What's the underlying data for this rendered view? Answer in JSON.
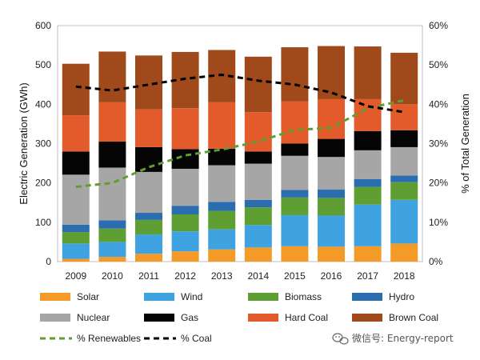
{
  "chart_data": {
    "type": "bar",
    "stacked": true,
    "categories": [
      "2009",
      "2010",
      "2011",
      "2012",
      "2013",
      "2014",
      "2015",
      "2016",
      "2017",
      "2018"
    ],
    "series": [
      {
        "name": "Solar",
        "color": "#F39A27",
        "values": [
          7,
          12,
          20,
          26,
          31,
          36,
          39,
          38,
          39,
          46
        ]
      },
      {
        "name": "Wind",
        "color": "#3EA3E0",
        "values": [
          39,
          38,
          49,
          51,
          51,
          57,
          79,
          79,
          106,
          111
        ]
      },
      {
        "name": "Biomass",
        "color": "#5E9E33",
        "values": [
          29,
          34,
          37,
          43,
          47,
          45,
          45,
          45,
          45,
          45
        ]
      },
      {
        "name": "Hydro",
        "color": "#2B6EB0",
        "values": [
          19,
          21,
          18,
          22,
          23,
          19,
          19,
          21,
          20,
          17
        ]
      },
      {
        "name": "Nuclear",
        "color": "#A6A6A6",
        "values": [
          127,
          134,
          104,
          94,
          93,
          92,
          87,
          83,
          73,
          72
        ]
      },
      {
        "name": "Gas",
        "color": "#050505",
        "values": [
          59,
          66,
          63,
          50,
          42,
          31,
          31,
          46,
          49,
          43
        ]
      },
      {
        "name": "Hard Coal",
        "color": "#E35B2A",
        "values": [
          92,
          100,
          96,
          104,
          118,
          100,
          107,
          101,
          81,
          66
        ]
      },
      {
        "name": "Brown Coal",
        "color": "#A04A1C",
        "values": [
          131,
          129,
          137,
          143,
          133,
          141,
          138,
          135,
          134,
          131
        ]
      }
    ],
    "lines": [
      {
        "name": "% Renewables",
        "color": "#5E9E33",
        "dash": "dashed",
        "values": [
          19,
          20,
          24,
          27,
          28.5,
          30.5,
          33.5,
          34,
          39,
          41
        ]
      },
      {
        "name": "% Coal",
        "color": "#000000",
        "dash": "dashed",
        "values": [
          44.5,
          43.5,
          45,
          46.5,
          47.5,
          46,
          45,
          43,
          39.5,
          38
        ]
      }
    ],
    "ylabel": "Electric Generation (GWh)",
    "y2label": "% of Total Generation",
    "ylim": [
      0,
      600
    ],
    "y2lim": [
      0,
      60
    ],
    "yticks": [
      "0",
      "100",
      "200",
      "300",
      "400",
      "500",
      "600"
    ],
    "y2ticks": [
      "0%",
      "10%",
      "20%",
      "30%",
      "40%",
      "50%",
      "60%"
    ],
    "grid": false,
    "legend_position": "bottom"
  },
  "watermark": {
    "text": "微信号: Energy-report",
    "icon": "wechat-icon"
  }
}
